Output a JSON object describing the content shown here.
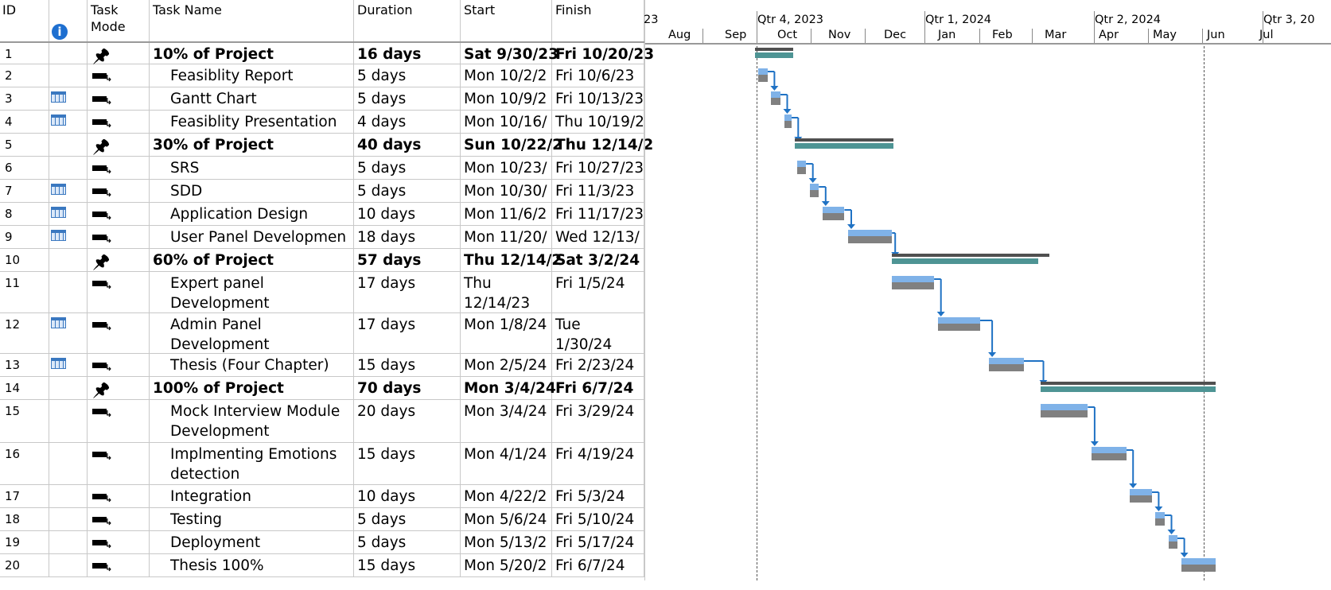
{
  "headers": {
    "id": "ID",
    "info_icon": "info-icon",
    "mode": "Task Mode",
    "name": "Task Name",
    "duration": "Duration",
    "start": "Start",
    "finish": "Finish"
  },
  "timeline": {
    "quarters": [
      "23",
      "Qtr 4, 2023",
      "Qtr 1, 2024",
      "Qtr 2, 2024",
      "Qtr 3, 20"
    ],
    "months": [
      "Aug",
      "Sep",
      "Oct",
      "Nov",
      "Dec",
      "Jan",
      "Feb",
      "Mar",
      "Apr",
      "May",
      "Jun",
      "Jul"
    ]
  },
  "tasks": [
    {
      "id": "1",
      "name": "10% of Project",
      "duration": "16 days",
      "start": "Sat 9/30/23",
      "finish": "Fri 10/20/23",
      "summary": true,
      "calendar": false
    },
    {
      "id": "2",
      "name": "Feasiblity Report",
      "duration": "5 days",
      "start": "Mon 10/2/2",
      "finish": "Fri 10/6/23",
      "summary": false,
      "calendar": false
    },
    {
      "id": "3",
      "name": "Gantt Chart",
      "duration": "5 days",
      "start": "Mon 10/9/2",
      "finish": "Fri 10/13/23",
      "summary": false,
      "calendar": true
    },
    {
      "id": "4",
      "name": "Feasiblity Presentation",
      "duration": "4 days",
      "start": "Mon 10/16/",
      "finish": "Thu 10/19/2",
      "summary": false,
      "calendar": true
    },
    {
      "id": "5",
      "name": "30% of Project",
      "duration": "40 days",
      "start": "Sun 10/22/2",
      "finish": "Thu 12/14/2",
      "summary": true,
      "calendar": false
    },
    {
      "id": "6",
      "name": "SRS",
      "duration": "5 days",
      "start": "Mon 10/23/",
      "finish": "Fri 10/27/23",
      "summary": false,
      "calendar": false
    },
    {
      "id": "7",
      "name": "SDD",
      "duration": "5 days",
      "start": "Mon 10/30/",
      "finish": "Fri 11/3/23",
      "summary": false,
      "calendar": true
    },
    {
      "id": "8",
      "name": "Application Design",
      "duration": "10 days",
      "start": "Mon 11/6/2",
      "finish": "Fri 11/17/23",
      "summary": false,
      "calendar": true
    },
    {
      "id": "9",
      "name": "User Panel Developmen",
      "duration": "18 days",
      "start": "Mon 11/20/",
      "finish": "Wed 12/13/",
      "summary": false,
      "calendar": true
    },
    {
      "id": "10",
      "name": "60% of Project",
      "duration": "57 days",
      "start": "Thu 12/14/2",
      "finish": "Sat 3/2/24",
      "summary": true,
      "calendar": false
    },
    {
      "id": "11",
      "name": "Expert panel Development",
      "duration": "17 days",
      "start": "Thu 12/14/23",
      "finish": "Fri 1/5/24",
      "summary": false,
      "calendar": false
    },
    {
      "id": "12",
      "name": "Admin Panel Development",
      "duration": "17 days",
      "start": "Mon 1/8/24",
      "finish": "Tue 1/30/24",
      "summary": false,
      "calendar": true
    },
    {
      "id": "13",
      "name": "Thesis (Four Chapter)",
      "duration": "15 days",
      "start": "Mon 2/5/24",
      "finish": "Fri 2/23/24",
      "summary": false,
      "calendar": true
    },
    {
      "id": "14",
      "name": "100% of Project",
      "duration": "70 days",
      "start": "Mon 3/4/24",
      "finish": "Fri 6/7/24",
      "summary": true,
      "calendar": false
    },
    {
      "id": "15",
      "name": "Mock Interview Module Development",
      "duration": "20 days",
      "start": "Mon 3/4/24",
      "finish": "Fri 3/29/24",
      "summary": false,
      "calendar": false
    },
    {
      "id": "16",
      "name": "Implmenting Emotions detection",
      "duration": "15 days",
      "start": "Mon 4/1/24",
      "finish": "Fri 4/19/24",
      "summary": false,
      "calendar": false
    },
    {
      "id": "17",
      "name": "Integration",
      "duration": "10 days",
      "start": "Mon 4/22/2",
      "finish": "Fri 5/3/24",
      "summary": false,
      "calendar": false
    },
    {
      "id": "18",
      "name": "Testing",
      "duration": "5 days",
      "start": "Mon 5/6/24",
      "finish": "Fri 5/10/24",
      "summary": false,
      "calendar": false
    },
    {
      "id": "19",
      "name": "Deployment",
      "duration": "5 days",
      "start": "Mon 5/13/2",
      "finish": "Fri 5/17/24",
      "summary": false,
      "calendar": false
    },
    {
      "id": "20",
      "name": "Thesis 100%",
      "duration": "15 days",
      "start": "Mon 5/20/2",
      "finish": "Fri 6/7/24",
      "summary": false,
      "calendar": false
    }
  ],
  "colors": {
    "grid_line": "#c8c8c8",
    "task_bar": "#7fb2e8",
    "baseline_bar": "#808080",
    "summary_bar": "#4e9494",
    "link": "#1f72c4",
    "info_icon": "#1e6fd0"
  }
}
